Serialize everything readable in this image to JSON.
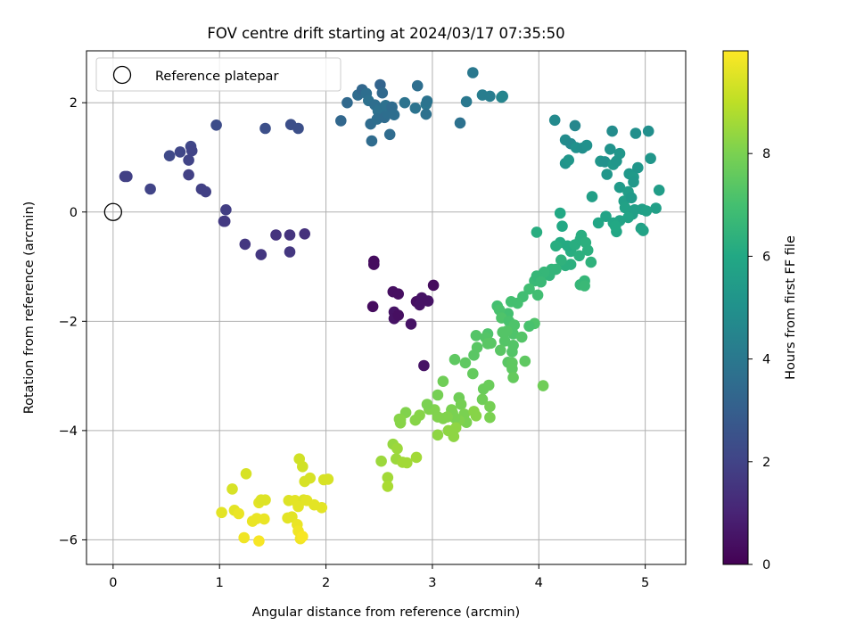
{
  "chart_data": {
    "type": "scatter",
    "title": "FOV centre drift starting at 2024/03/17 07:35:50",
    "xlabel": "Angular distance from reference (arcmin)",
    "ylabel": "Rotation from reference (arcmin)",
    "xlim": [
      -0.25,
      5.38
    ],
    "ylim": [
      -6.45,
      2.95
    ],
    "xticks": [
      0,
      1,
      2,
      3,
      4,
      5
    ],
    "yticks": [
      -6,
      -4,
      -2,
      0,
      2
    ],
    "grid": true,
    "legend": {
      "placement": "top-left",
      "entries": [
        "Reference platepar"
      ]
    },
    "reference_point": {
      "label": "Reference platepar",
      "x": 0,
      "y": 0
    },
    "colorbar": {
      "label": "Hours from first FF file",
      "range": [
        0,
        10
      ],
      "ticks": [
        0,
        2,
        4,
        6,
        8
      ],
      "colormap": "viridis"
    },
    "points": [
      [
        2.45,
        -0.9,
        0.3
      ],
      [
        2.45,
        -0.96,
        0.3
      ],
      [
        2.44,
        -1.73,
        0.3
      ],
      [
        2.63,
        -1.46,
        0.4
      ],
      [
        2.68,
        -1.5,
        0.4
      ],
      [
        2.64,
        -1.83,
        0.5
      ],
      [
        2.64,
        -1.95,
        0.5
      ],
      [
        2.68,
        -1.89,
        0.4
      ],
      [
        2.8,
        -2.05,
        0.5
      ],
      [
        2.85,
        -1.64,
        0.4
      ],
      [
        2.9,
        -1.57,
        0.5
      ],
      [
        2.88,
        -1.7,
        0.5
      ],
      [
        2.96,
        -1.63,
        0.5
      ],
      [
        3.01,
        -1.34,
        0.3
      ],
      [
        2.92,
        -2.81,
        0.5
      ],
      [
        0.13,
        0.65,
        1.9
      ],
      [
        0.11,
        0.65,
        1.9
      ],
      [
        0.35,
        0.42,
        2.0
      ],
      [
        0.53,
        1.03,
        2.2
      ],
      [
        0.63,
        1.1,
        2.1
      ],
      [
        0.71,
        0.95,
        2.0
      ],
      [
        0.73,
        1.2,
        2.1
      ],
      [
        0.74,
        1.12,
        2.0
      ],
      [
        0.71,
        0.68,
        1.9
      ],
      [
        0.83,
        0.42,
        1.9
      ],
      [
        0.87,
        0.37,
        1.9
      ],
      [
        0.97,
        1.59,
        2.3
      ],
      [
        1.05,
        -0.17,
        1.7
      ],
      [
        1.06,
        0.04,
        1.8
      ],
      [
        1.04,
        -0.17,
        1.7
      ],
      [
        1.24,
        -0.59,
        1.6
      ],
      [
        1.39,
        -0.78,
        1.6
      ],
      [
        1.43,
        1.53,
        2.4
      ],
      [
        1.53,
        -0.42,
        1.5
      ],
      [
        1.66,
        -0.42,
        1.5
      ],
      [
        1.66,
        -0.73,
        1.6
      ],
      [
        1.8,
        -0.4,
        1.4
      ],
      [
        1.67,
        1.6,
        2.4
      ],
      [
        1.74,
        1.53,
        2.4
      ],
      [
        2.14,
        1.67,
        3.3
      ],
      [
        2.2,
        2.0,
        3.4
      ],
      [
        2.3,
        2.14,
        3.5
      ],
      [
        2.34,
        2.24,
        3.3
      ],
      [
        2.38,
        2.17,
        3.6
      ],
      [
        2.4,
        2.04,
        3.7
      ],
      [
        2.42,
        1.61,
        3.5
      ],
      [
        2.43,
        1.3,
        3.5
      ],
      [
        2.46,
        1.96,
        3.6
      ],
      [
        2.49,
        1.85,
        3.7
      ],
      [
        2.51,
        2.33,
        3.2
      ],
      [
        2.53,
        2.18,
        3.4
      ],
      [
        2.48,
        1.7,
        3.6
      ],
      [
        2.55,
        1.73,
        3.5
      ],
      [
        2.58,
        1.8,
        3.6
      ],
      [
        2.56,
        1.95,
        3.7
      ],
      [
        2.62,
        1.92,
        3.5
      ],
      [
        2.6,
        1.42,
        3.5
      ],
      [
        2.64,
        1.78,
        3.6
      ],
      [
        2.74,
        2.0,
        3.8
      ],
      [
        2.84,
        1.9,
        3.8
      ],
      [
        2.86,
        2.31,
        3.6
      ],
      [
        2.94,
        1.97,
        3.9
      ],
      [
        2.94,
        1.79,
        3.7
      ],
      [
        2.95,
        2.03,
        3.8
      ],
      [
        3.26,
        1.63,
        3.7
      ],
      [
        3.32,
        2.02,
        4.0
      ],
      [
        3.38,
        2.55,
        4.0
      ],
      [
        3.47,
        2.14,
        4.2
      ],
      [
        3.54,
        2.12,
        4.2
      ],
      [
        3.66,
        2.12,
        4.4
      ],
      [
        3.65,
        2.1,
        4.5
      ],
      [
        4.15,
        1.68,
        4.7
      ],
      [
        4.25,
        1.32,
        4.8
      ],
      [
        4.3,
        1.25,
        4.7
      ],
      [
        4.34,
        1.58,
        4.6
      ],
      [
        4.25,
        0.89,
        5.1
      ],
      [
        4.28,
        0.95,
        5.2
      ],
      [
        4.35,
        1.18,
        5.0
      ],
      [
        4.41,
        1.17,
        4.9
      ],
      [
        4.45,
        1.22,
        5.0
      ],
      [
        4.58,
        0.93,
        5.2
      ],
      [
        4.62,
        0.92,
        5.0
      ],
      [
        4.67,
        1.15,
        5.1
      ],
      [
        4.7,
        0.87,
        5.3
      ],
      [
        4.69,
        1.48,
        4.8
      ],
      [
        4.64,
        0.69,
        5.2
      ],
      [
        4.73,
        0.93,
        5.2
      ],
      [
        4.76,
        0.45,
        5.4
      ],
      [
        4.5,
        0.28,
        5.6
      ],
      [
        4.76,
        1.07,
        5.2
      ],
      [
        4.8,
        0.2,
        5.6
      ],
      [
        4.85,
        0.7,
        5.3
      ],
      [
        4.84,
        0.37,
        5.5
      ],
      [
        4.87,
        0.26,
        5.4
      ],
      [
        4.89,
        0.64,
        5.4
      ],
      [
        4.89,
        0.55,
        5.3
      ],
      [
        4.9,
        0.04,
        5.6
      ],
      [
        4.88,
        -0.04,
        5.6
      ],
      [
        4.91,
        1.44,
        4.9
      ],
      [
        4.93,
        0.81,
        5.2
      ],
      [
        4.96,
        -0.3,
        5.7
      ],
      [
        4.98,
        -0.34,
        5.8
      ],
      [
        4.97,
        0.05,
        5.6
      ],
      [
        5.03,
        1.48,
        4.9
      ],
      [
        5.05,
        0.98,
        5.2
      ],
      [
        5.1,
        0.07,
        5.6
      ],
      [
        5.13,
        0.4,
        5.5
      ],
      [
        5.01,
        0.02,
        5.7
      ],
      [
        4.81,
        0.08,
        5.7
      ],
      [
        4.84,
        -0.1,
        5.8
      ],
      [
        4.76,
        -0.16,
        5.8
      ],
      [
        4.7,
        -0.2,
        5.9
      ],
      [
        4.63,
        -0.08,
        5.8
      ],
      [
        4.56,
        -0.2,
        5.9
      ],
      [
        4.73,
        -0.36,
        5.9
      ],
      [
        4.72,
        -0.26,
        6.0
      ],
      [
        4.3,
        -0.72,
        6.2
      ],
      [
        4.27,
        -0.62,
        6.1
      ],
      [
        4.2,
        -0.56,
        6.1
      ],
      [
        4.22,
        -0.26,
        6.0
      ],
      [
        4.2,
        -0.02,
        6.0
      ],
      [
        4.16,
        -0.62,
        6.2
      ],
      [
        4.34,
        -0.6,
        6.2
      ],
      [
        4.39,
        -0.5,
        6.2
      ],
      [
        4.4,
        -0.43,
        6.2
      ],
      [
        4.44,
        -0.56,
        6.3
      ],
      [
        4.46,
        -0.7,
        6.3
      ],
      [
        4.38,
        -0.8,
        6.3
      ],
      [
        4.49,
        -0.92,
        6.4
      ],
      [
        4.3,
        -0.96,
        6.3
      ],
      [
        4.25,
        -0.98,
        6.3
      ],
      [
        4.21,
        -0.88,
        6.4
      ],
      [
        4.39,
        -1.33,
        6.6
      ],
      [
        4.43,
        -1.26,
        6.6
      ],
      [
        4.43,
        -1.35,
        6.7
      ],
      [
        4.12,
        -1.05,
        6.5
      ],
      [
        4.16,
        -1.05,
        6.5
      ],
      [
        4.1,
        -1.16,
        6.5
      ],
      [
        4.05,
        -1.1,
        6.6
      ],
      [
        3.98,
        -0.37,
        6.2
      ],
      [
        3.96,
        -1.26,
        6.7
      ],
      [
        3.98,
        -1.17,
        6.6
      ],
      [
        4.02,
        -1.28,
        6.7
      ],
      [
        3.99,
        -1.52,
        6.9
      ],
      [
        3.91,
        -1.41,
        6.9
      ],
      [
        3.85,
        -1.55,
        6.9
      ],
      [
        3.8,
        -1.67,
        7.0
      ],
      [
        3.74,
        -1.64,
        7.0
      ],
      [
        3.71,
        -1.86,
        7.0
      ],
      [
        3.61,
        -1.72,
        7.0
      ],
      [
        3.63,
        -1.79,
        7.1
      ],
      [
        3.65,
        -1.94,
        7.2
      ],
      [
        3.72,
        -2.0,
        7.1
      ],
      [
        3.76,
        -2.23,
        7.2
      ],
      [
        3.77,
        -2.07,
        7.2
      ],
      [
        3.96,
        -2.04,
        7.2
      ],
      [
        3.91,
        -2.09,
        7.1
      ],
      [
        3.84,
        -2.29,
        7.3
      ],
      [
        3.76,
        -2.44,
        7.3
      ],
      [
        3.75,
        -2.56,
        7.3
      ],
      [
        3.68,
        -2.36,
        7.3
      ],
      [
        3.64,
        -2.53,
        7.4
      ],
      [
        3.66,
        -2.2,
        7.3
      ],
      [
        3.7,
        -2.18,
        7.3
      ],
      [
        3.71,
        -2.75,
        7.4
      ],
      [
        3.75,
        -2.76,
        7.5
      ],
      [
        3.75,
        -2.87,
        7.5
      ],
      [
        3.87,
        -2.73,
        7.5
      ],
      [
        3.76,
        -3.03,
        7.6
      ],
      [
        3.52,
        -2.23,
        7.2
      ],
      [
        3.5,
        -2.3,
        7.3
      ],
      [
        3.41,
        -2.26,
        7.3
      ],
      [
        3.52,
        -2.41,
        7.4
      ],
      [
        3.55,
        -2.4,
        7.4
      ],
      [
        3.42,
        -2.48,
        7.4
      ],
      [
        3.39,
        -2.62,
        7.4
      ],
      [
        3.31,
        -2.76,
        7.5
      ],
      [
        3.21,
        -2.7,
        7.5
      ],
      [
        3.38,
        -2.96,
        7.6
      ],
      [
        3.48,
        -3.24,
        7.7
      ],
      [
        3.53,
        -3.17,
        7.7
      ],
      [
        3.47,
        -3.43,
        7.8
      ],
      [
        3.54,
        -3.56,
        7.9
      ],
      [
        3.54,
        -3.76,
        8.0
      ],
      [
        4.04,
        -3.18,
        7.8
      ],
      [
        3.05,
        -3.35,
        7.9
      ],
      [
        3.1,
        -3.1,
        7.8
      ],
      [
        3.18,
        -3.62,
        8.0
      ],
      [
        3.25,
        -3.4,
        7.8
      ],
      [
        3.27,
        -3.52,
        7.9
      ],
      [
        3.3,
        -3.7,
        8.0
      ],
      [
        3.32,
        -3.85,
        8.0
      ],
      [
        3.25,
        -3.82,
        8.1
      ],
      [
        3.21,
        -3.77,
        8.0
      ],
      [
        3.19,
        -3.68,
        8.0
      ],
      [
        3.14,
        -3.75,
        8.1
      ],
      [
        3.1,
        -3.78,
        8.1
      ],
      [
        3.05,
        -3.75,
        8.1
      ],
      [
        3.02,
        -3.62,
        8.1
      ],
      [
        2.97,
        -3.61,
        8.1
      ],
      [
        2.95,
        -3.52,
        8.0
      ],
      [
        2.88,
        -3.72,
        8.2
      ],
      [
        2.84,
        -3.81,
        8.2
      ],
      [
        2.75,
        -3.67,
        8.1
      ],
      [
        2.69,
        -3.79,
        8.2
      ],
      [
        2.7,
        -3.86,
        8.2
      ],
      [
        3.05,
        -4.08,
        8.3
      ],
      [
        3.15,
        -4.0,
        8.3
      ],
      [
        3.2,
        -4.11,
        8.3
      ],
      [
        3.22,
        -3.95,
        8.3
      ],
      [
        3.41,
        -3.73,
        8.2
      ],
      [
        3.39,
        -3.65,
        8.2
      ],
      [
        2.52,
        -4.56,
        8.5
      ],
      [
        2.58,
        -4.86,
        8.6
      ],
      [
        2.58,
        -5.02,
        8.7
      ],
      [
        2.63,
        -4.25,
        8.4
      ],
      [
        2.67,
        -4.33,
        8.5
      ],
      [
        2.66,
        -4.52,
        8.5
      ],
      [
        2.72,
        -4.58,
        8.6
      ],
      [
        2.76,
        -4.59,
        8.6
      ],
      [
        2.85,
        -4.49,
        8.6
      ],
      [
        2.7,
        -3.8,
        8.2
      ],
      [
        1.02,
        -5.5,
        9.6
      ],
      [
        1.12,
        -5.07,
        9.4
      ],
      [
        1.14,
        -5.46,
        9.6
      ],
      [
        1.18,
        -5.52,
        9.7
      ],
      [
        1.23,
        -5.96,
        9.8
      ],
      [
        1.25,
        -4.79,
        9.4
      ],
      [
        1.31,
        -5.66,
        9.7
      ],
      [
        1.35,
        -5.61,
        9.7
      ],
      [
        1.37,
        -6.02,
        9.9
      ],
      [
        1.37,
        -5.32,
        9.6
      ],
      [
        1.39,
        -5.27,
        9.5
      ],
      [
        1.43,
        -5.27,
        9.5
      ],
      [
        1.42,
        -5.62,
        9.7
      ],
      [
        1.65,
        -5.28,
        9.5
      ],
      [
        1.64,
        -5.6,
        9.6
      ],
      [
        1.68,
        -5.58,
        9.6
      ],
      [
        1.71,
        -5.28,
        9.6
      ],
      [
        1.73,
        -5.72,
        9.7
      ],
      [
        1.74,
        -5.84,
        9.8
      ],
      [
        1.76,
        -5.98,
        9.8
      ],
      [
        1.78,
        -5.94,
        9.9
      ],
      [
        1.75,
        -4.52,
        9.3
      ],
      [
        1.78,
        -4.66,
        9.3
      ],
      [
        1.8,
        -4.93,
        9.4
      ],
      [
        1.79,
        -5.27,
        9.5
      ],
      [
        1.74,
        -5.39,
        9.6
      ],
      [
        1.82,
        -5.28,
        9.6
      ],
      [
        1.85,
        -4.87,
        9.4
      ],
      [
        1.89,
        -5.36,
        9.6
      ],
      [
        1.96,
        -5.41,
        9.6
      ],
      [
        1.98,
        -4.9,
        9.4
      ],
      [
        2.02,
        -4.89,
        9.4
      ]
    ]
  }
}
